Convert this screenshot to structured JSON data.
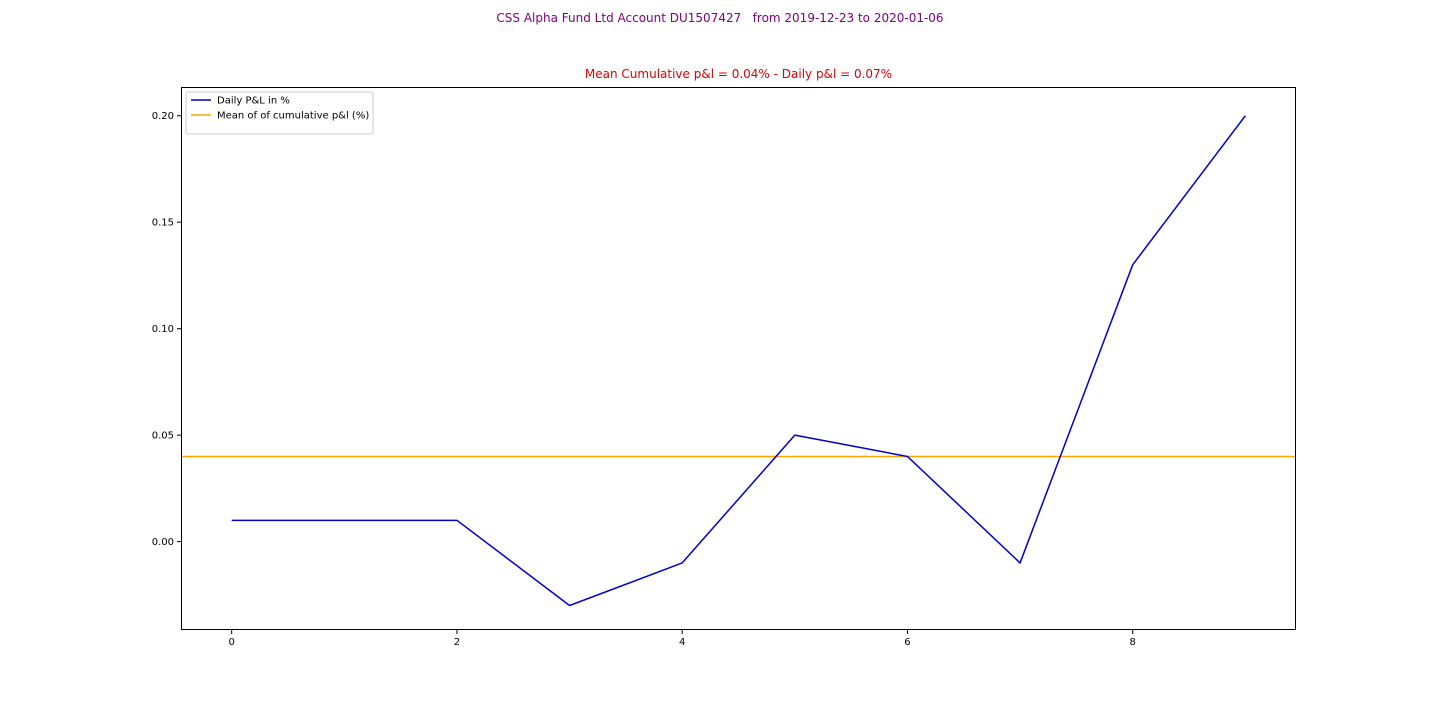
{
  "suptitle": "CSS Alpha Fund Ltd Account DU1507427   from 2019-12-23 to 2020-01-06",
  "chart_data": {
    "type": "line",
    "title": "Mean Cumulative p&l = 0.04% - Daily p&l = 0.07%",
    "xlabel": "",
    "ylabel": "",
    "x": [
      0,
      1,
      2,
      3,
      4,
      5,
      6,
      7,
      8,
      9
    ],
    "series": [
      {
        "name": "Daily P&L in %",
        "color": "#0000cc",
        "values": [
          0.01,
          0.01,
          0.01,
          -0.03,
          -0.01,
          0.05,
          0.04,
          -0.01,
          0.13,
          0.2
        ]
      }
    ],
    "hlines": [
      {
        "name": "Mean of of cumulative p&l (%)",
        "y": 0.04,
        "color": "#ffa500"
      }
    ],
    "xlim": [
      -0.45,
      9.45
    ],
    "ylim": [
      -0.0415,
      0.2135
    ],
    "xticks": [
      0,
      2,
      4,
      6,
      8
    ],
    "xtick_labels": [
      "0",
      "2",
      "4",
      "6",
      "8"
    ],
    "yticks": [
      0.0,
      0.05,
      0.1,
      0.15,
      0.2
    ],
    "ytick_labels": [
      "0.00",
      "0.05",
      "0.10",
      "0.15",
      "0.20"
    ],
    "grid": false,
    "legend_position": "upper-left"
  }
}
